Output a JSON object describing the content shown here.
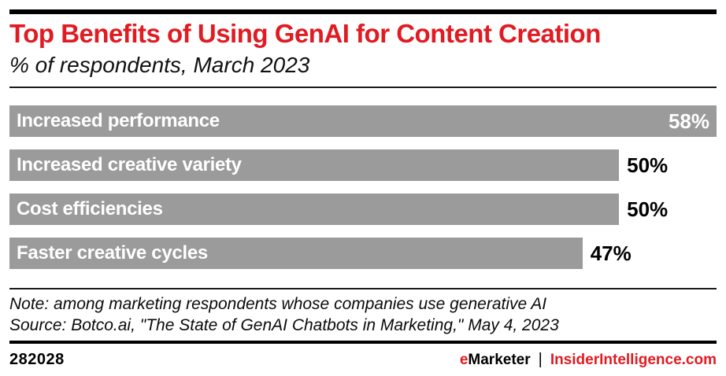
{
  "header": {
    "title": "Top Benefits of Using GenAI for Content Creation",
    "subtitle": "% of respondents, March 2023"
  },
  "chart_data": {
    "type": "bar",
    "orientation": "horizontal",
    "title": "Top Benefits of Using GenAI for Content Creation",
    "subtitle": "% of respondents, March 2023",
    "categories": [
      "Increased performance",
      "Increased creative variety",
      "Cost efficiencies",
      "Faster creative cycles"
    ],
    "values": [
      58,
      50,
      50,
      47
    ],
    "value_labels": [
      "58%",
      "50%",
      "50%",
      "47%"
    ],
    "value_label_positions": [
      "inside",
      "outside",
      "outside",
      "outside"
    ],
    "unit": "%",
    "xlabel": "",
    "ylabel": "",
    "xlim": [
      0,
      58
    ],
    "grid": false,
    "legend": false,
    "bar_color": "#9b9b9b",
    "category_label_color": "#ffffff",
    "inside_value_color": "#ffffff",
    "outside_value_color": "#000000"
  },
  "note": "Note: among marketing respondents whose companies use generative AI",
  "source": "Source: Botco.ai, \"The State of GenAI Chatbots in Marketing,\" May 4, 2023",
  "footer": {
    "chart_id": "282028",
    "brand_e": "e",
    "brand_rest": "Marketer",
    "separator": "|",
    "site": "InsiderIntelligence.com"
  },
  "colors": {
    "accent_red": "#e11b22",
    "bar_gray": "#9b9b9b",
    "text_black": "#000000",
    "background": "#ffffff"
  }
}
